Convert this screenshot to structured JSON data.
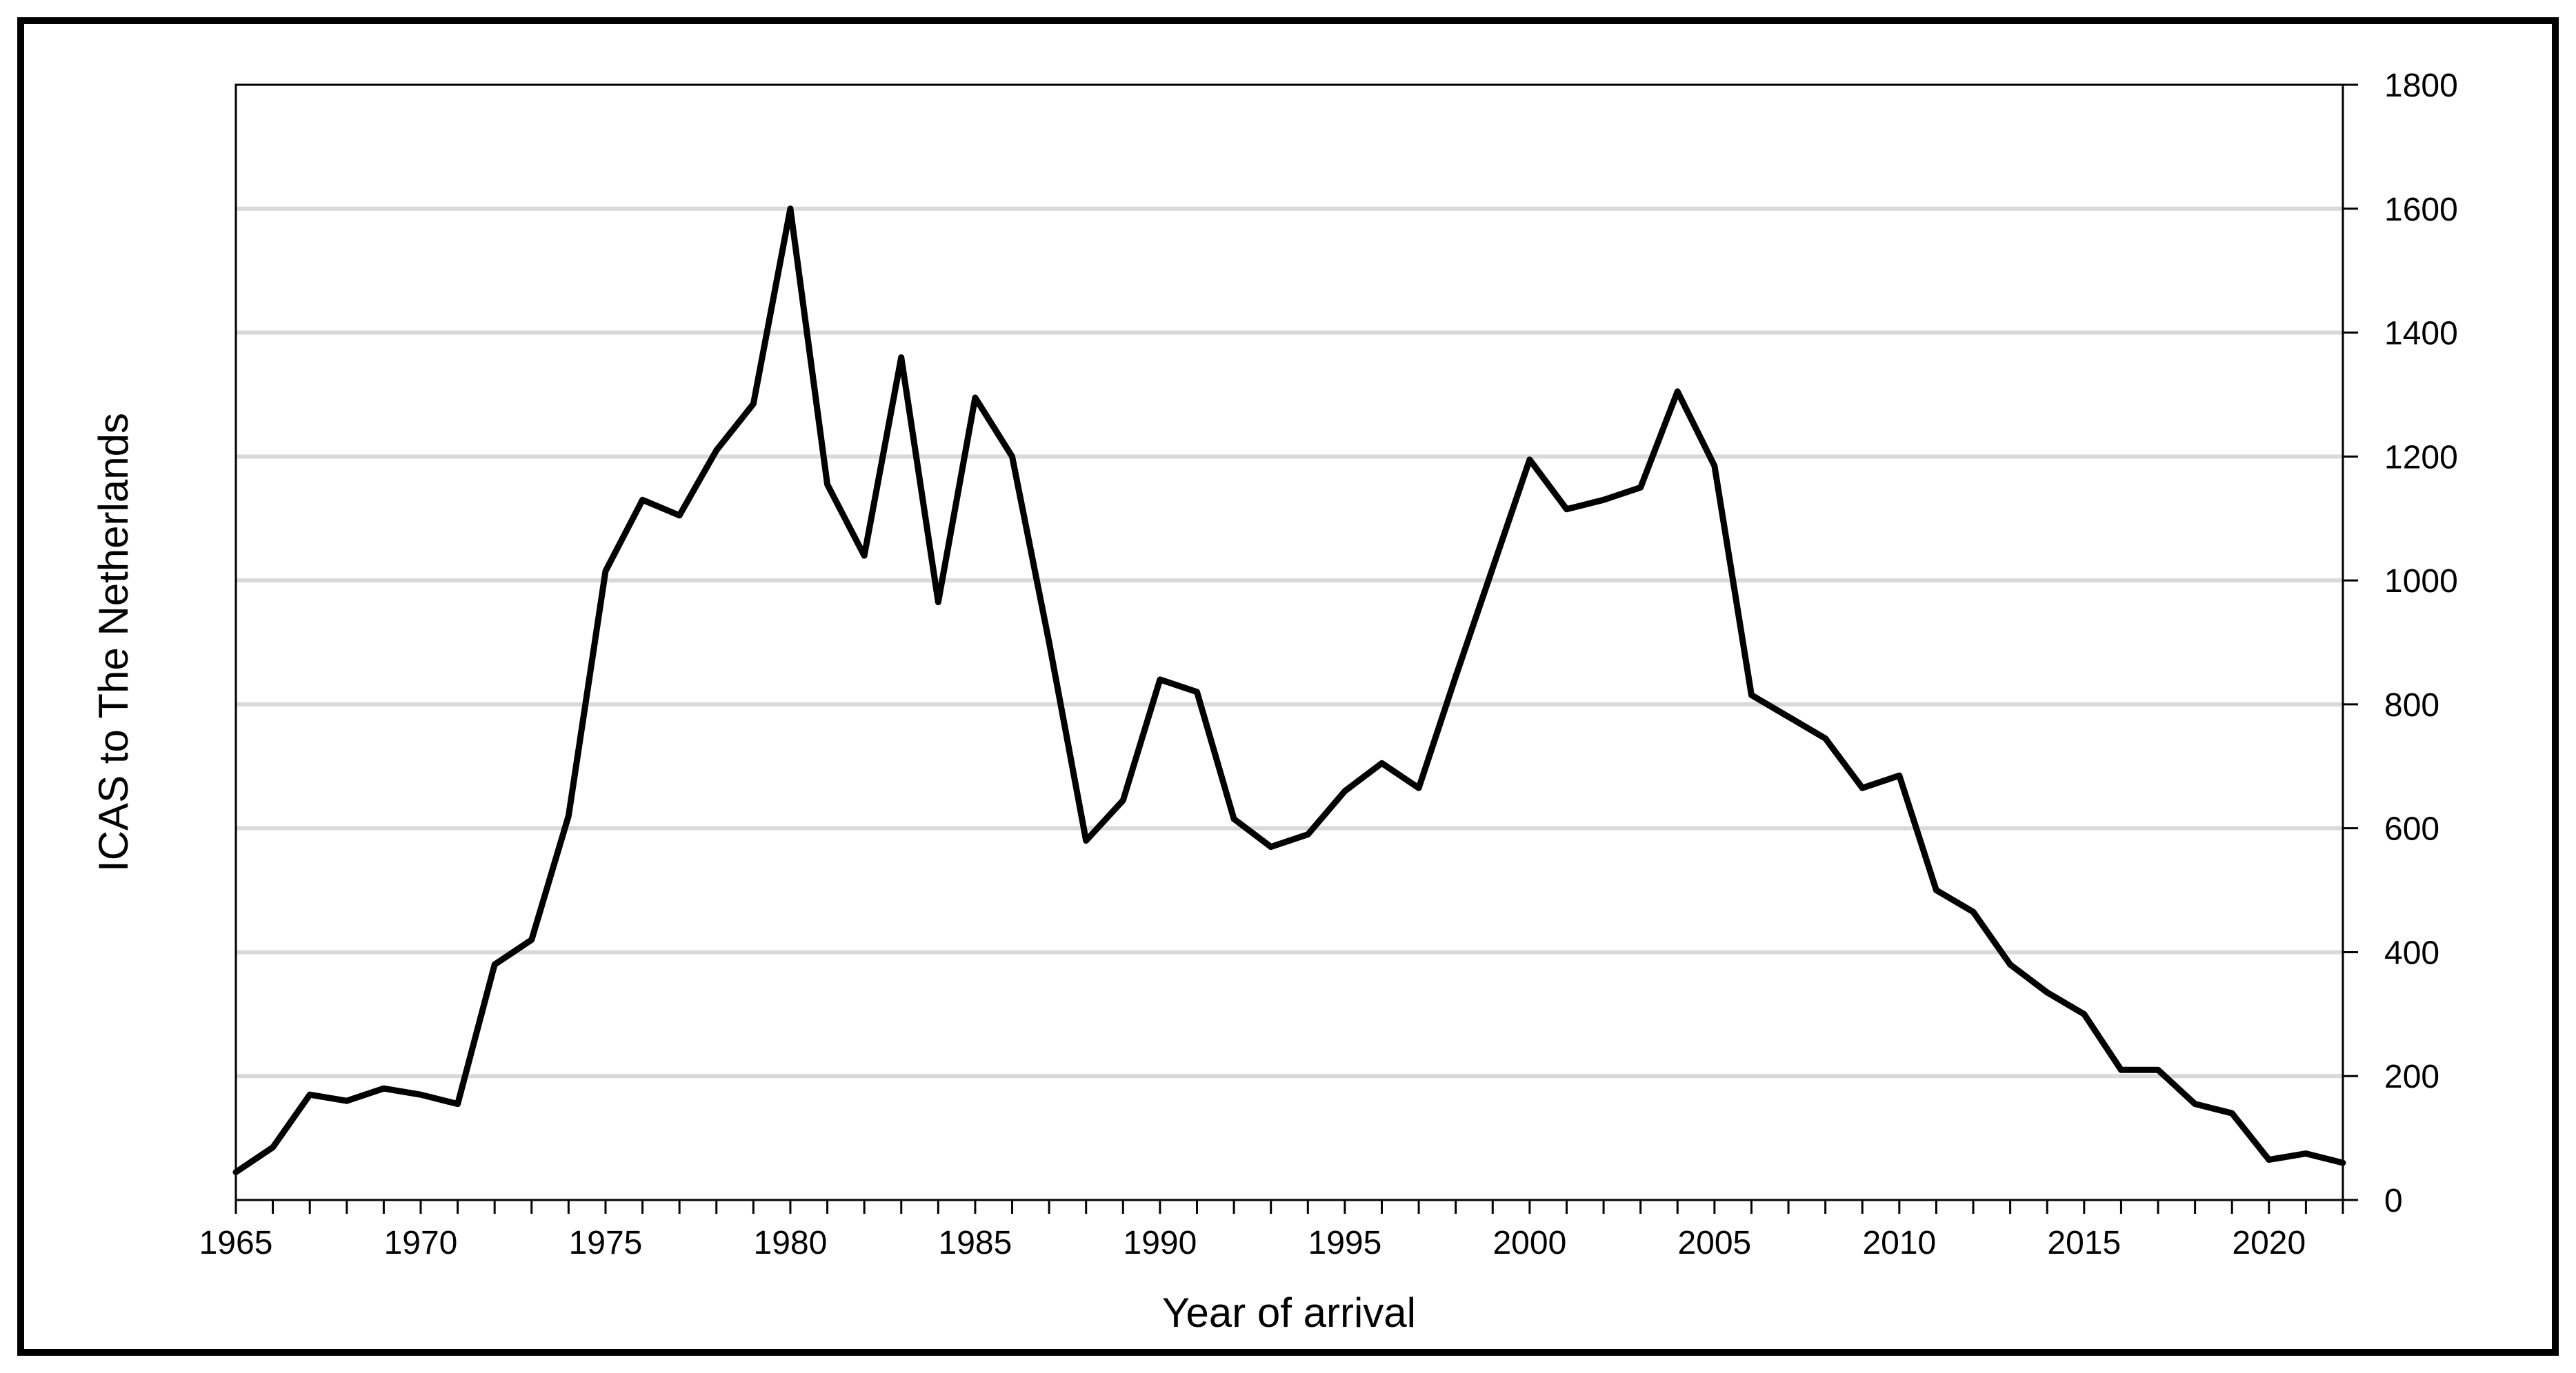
{
  "chart_data": {
    "type": "line",
    "xlabel": "Year of arrival",
    "ylabel": "ICAS to The Netherlands",
    "x": [
      1965,
      1966,
      1967,
      1968,
      1969,
      1970,
      1971,
      1972,
      1973,
      1974,
      1975,
      1976,
      1977,
      1978,
      1979,
      1980,
      1981,
      1982,
      1983,
      1984,
      1985,
      1986,
      1987,
      1988,
      1989,
      1990,
      1991,
      1992,
      1993,
      1994,
      1995,
      1996,
      1997,
      1998,
      1999,
      2000,
      2001,
      2002,
      2003,
      2004,
      2005,
      2006,
      2007,
      2008,
      2009,
      2010,
      2011,
      2012,
      2013,
      2014,
      2015,
      2016,
      2017,
      2018,
      2019,
      2020,
      2021,
      2022
    ],
    "values": [
      45,
      85,
      170,
      160,
      180,
      170,
      155,
      380,
      420,
      620,
      1015,
      1130,
      1105,
      1210,
      1285,
      1600,
      1155,
      1040,
      1360,
      965,
      1295,
      1200,
      900,
      580,
      645,
      840,
      820,
      615,
      570,
      590,
      660,
      705,
      665,
      845,
      1020,
      1195,
      1115,
      1130,
      1150,
      1305,
      1185,
      815,
      780,
      745,
      665,
      685,
      500,
      465,
      380,
      335,
      300,
      210,
      210,
      155,
      140,
      65,
      75,
      60
    ],
    "xlim": [
      1965,
      2022
    ],
    "ylim": [
      0,
      1800
    ],
    "y_tick_step": 200,
    "y_tick_labels": [
      "0",
      "200",
      "400",
      "600",
      "800",
      "1000",
      "1200",
      "1400",
      "1600",
      "1800"
    ],
    "x_tick_label_years": [
      1965,
      1970,
      1975,
      1980,
      1985,
      1990,
      1995,
      2000,
      2005,
      2010,
      2015,
      2020
    ],
    "grid": "horizontal",
    "legend": "none",
    "line_color": "#000000",
    "gridline_color": "#d9d9d9",
    "frame_color": "#000000",
    "background_color": "#ffffff"
  }
}
